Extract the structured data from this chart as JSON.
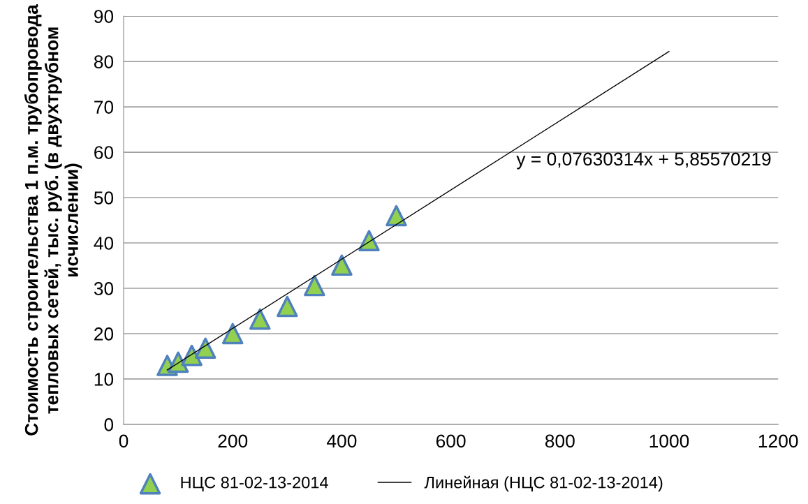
{
  "chart_data": {
    "type": "scatter",
    "ylabel": "Стоимость строительства 1 п.м. трубопровода тепловых сетей, тыс. руб. (в двухтрубном исчислении)",
    "xlim": [
      0,
      1200
    ],
    "xticks": [
      0,
      200,
      400,
      600,
      800,
      1000,
      1200
    ],
    "ylim": [
      0,
      90
    ],
    "yticks": [
      0,
      10,
      20,
      30,
      40,
      50,
      60,
      70,
      80,
      90
    ],
    "grid": "y",
    "legend": "bottom",
    "marker": "triangle",
    "series": [
      {
        "name": "НЦС 81-02-13-2014",
        "color": "#92d050",
        "x": [
          80,
          100,
          125,
          150,
          200,
          250,
          300,
          350,
          400,
          450,
          500
        ],
        "values": [
          13.0,
          13.7,
          15.2,
          16.8,
          20.0,
          23.2,
          26.0,
          30.6,
          35.1,
          40.5,
          46.0
        ]
      },
      {
        "name": "Линейная (НЦС 81-02-13-2014)",
        "type": "line",
        "marker": "none",
        "color": "#000000",
        "x": [
          80,
          1000
        ],
        "values": [
          12.0,
          82.2
        ]
      }
    ],
    "annotations": [
      "y = 0,07630314x + 5,85570219"
    ]
  }
}
